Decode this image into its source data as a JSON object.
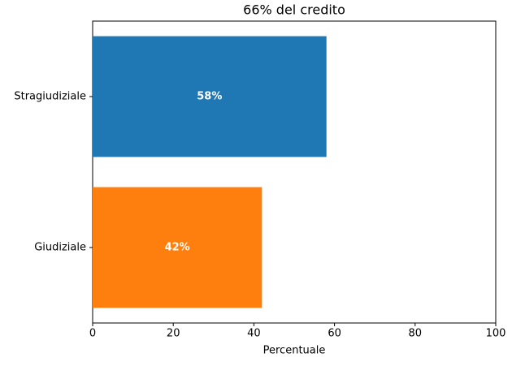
{
  "chart_data": {
    "type": "barh",
    "title": "66% del credito",
    "xlabel": "Percentuale",
    "categories": [
      "Stragiudiziale",
      "Giudiziale"
    ],
    "values": [
      58,
      42
    ],
    "value_labels": [
      "58%",
      "42%"
    ],
    "colors": [
      "#1f77b4",
      "#ff7f0e"
    ],
    "xlim": [
      0,
      100
    ],
    "xticks": [
      0,
      20,
      40,
      60,
      80,
      100
    ]
  }
}
